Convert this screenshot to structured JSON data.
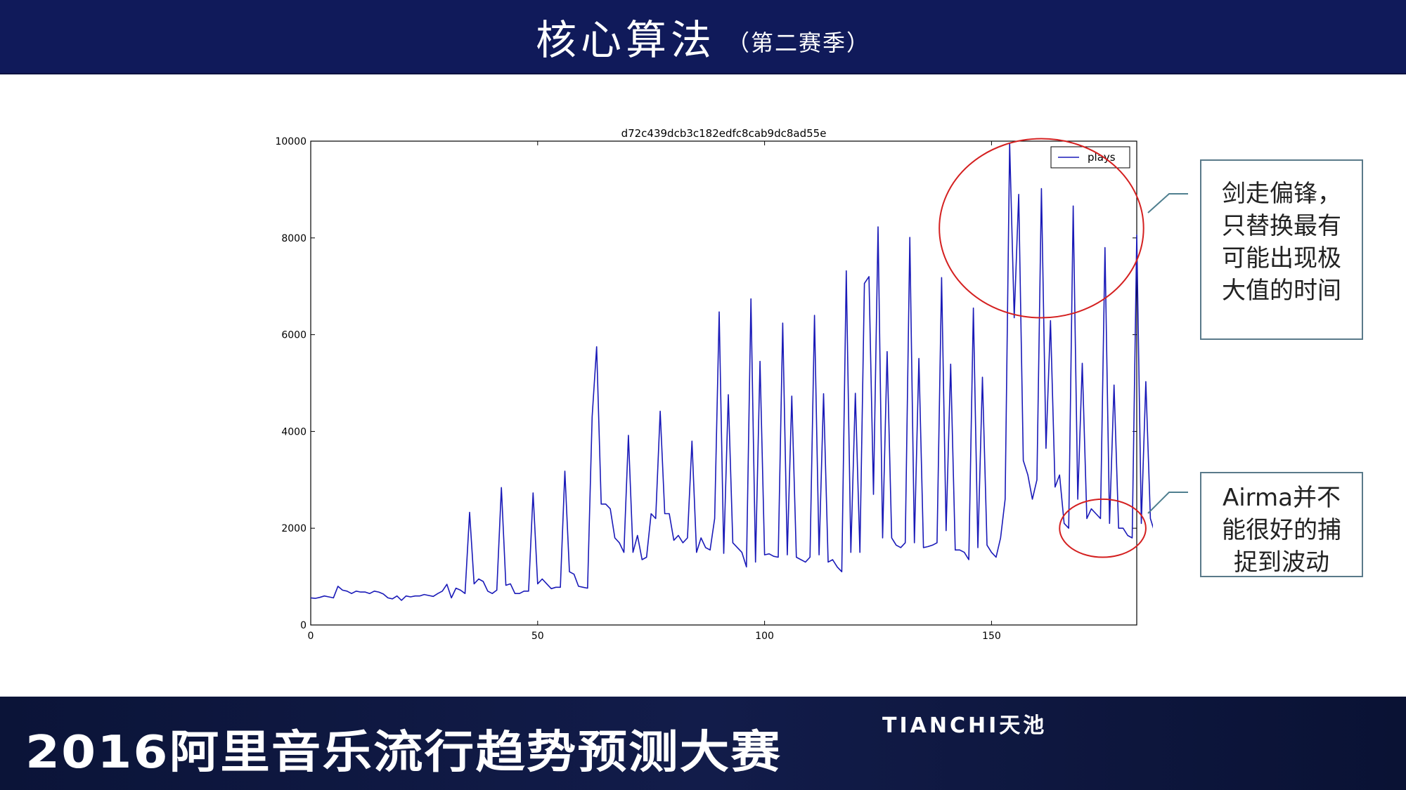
{
  "header": {
    "title": "核心算法",
    "subtitle": "（第二赛季）",
    "bg_color": "#101a5a"
  },
  "footer": {
    "title": "2016阿里音乐流行趋势预测大赛",
    "brand": "TIANCHI天池"
  },
  "callouts": [
    {
      "text": "剑走偏锋，只替换最有可能出现极大值的时间"
    },
    {
      "text": "Airma并不能很好的捕捉到波动"
    }
  ],
  "chart_data": {
    "type": "line",
    "title": "d72c439dcb3c182edfc8cab9dc8ad55e",
    "xlabel": "",
    "ylabel": "",
    "xlim": [
      0,
      182
    ],
    "ylim": [
      0,
      10000
    ],
    "xticks": [
      0,
      50,
      100,
      150
    ],
    "yticks": [
      0,
      2000,
      4000,
      6000,
      8000,
      10000
    ],
    "legend": {
      "label": "plays",
      "position": "top-right"
    },
    "line_color": "#1a1ab8",
    "ellipse_color": "#d42020",
    "series": [
      {
        "name": "plays",
        "values": [
          560,
          550,
          570,
          600,
          580,
          560,
          800,
          720,
          700,
          650,
          700,
          680,
          680,
          650,
          700,
          680,
          640,
          560,
          540,
          600,
          510,
          600,
          580,
          600,
          600,
          630,
          610,
          590,
          650,
          700,
          840,
          560,
          760,
          720,
          650,
          2330,
          850,
          950,
          900,
          700,
          650,
          720,
          2840,
          820,
          850,
          650,
          650,
          700,
          700,
          2730,
          850,
          950,
          850,
          750,
          780,
          780,
          3180,
          1100,
          1050,
          800,
          780,
          760,
          4300,
          5750,
          2500,
          2500,
          2400,
          1800,
          1700,
          1500,
          3920,
          1500,
          1850,
          1350,
          1400,
          2300,
          2200,
          4420,
          2300,
          2300,
          1750,
          1850,
          1700,
          1800,
          3800,
          1500,
          1800,
          1600,
          1550,
          2200,
          6470,
          1480,
          4760,
          1700,
          1600,
          1500,
          1200,
          6740,
          1300,
          5450,
          1450,
          1470,
          1420,
          1400,
          6240,
          1450,
          4730,
          1400,
          1350,
          1300,
          1400,
          6400,
          1450,
          4780,
          1300,
          1350,
          1200,
          1100,
          7320,
          1500,
          4790,
          1500,
          7060,
          7200,
          2700,
          8230,
          1800,
          5650,
          1800,
          1650,
          1600,
          1700,
          8010,
          1700,
          5510,
          1600,
          1620,
          1650,
          1700,
          7180,
          1950,
          5390,
          1550,
          1550,
          1500,
          1350,
          6550,
          1600,
          5120,
          1650,
          1500,
          1400,
          1800,
          2600,
          9950,
          6350,
          8900,
          3400,
          3100,
          2600,
          3000,
          9020,
          3650,
          6290,
          2850,
          3100,
          2100,
          2000,
          8660,
          2600,
          5410,
          2200,
          2400,
          2300,
          2200,
          7800,
          2100,
          4960,
          2000,
          2000,
          1850,
          1800,
          8060,
          2100,
          5030,
          2200,
          1900
        ]
      }
    ]
  }
}
